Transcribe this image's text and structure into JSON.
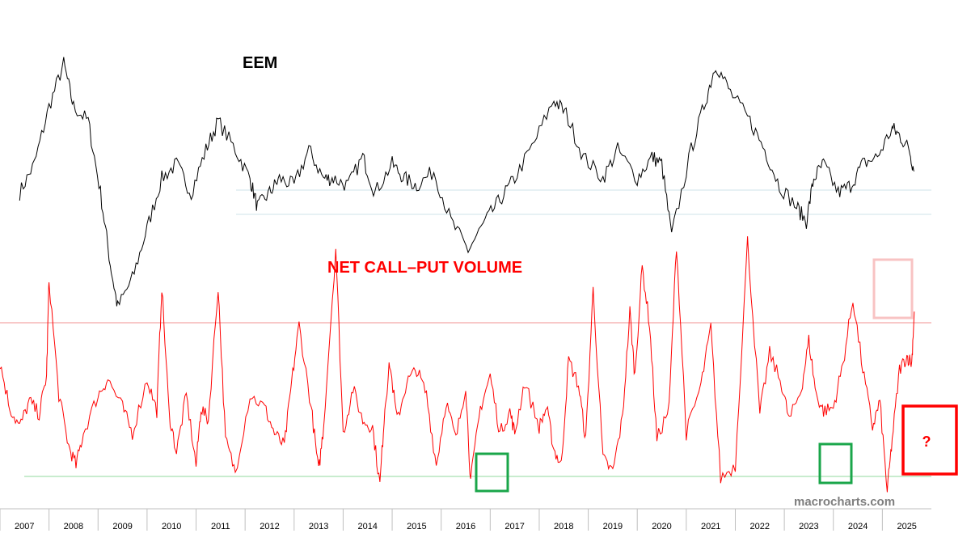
{
  "chart_data": [
    {
      "type": "line",
      "title": "EEM",
      "series": [
        {
          "x": [
            2006.9,
            2007.2,
            2007.5,
            2007.8,
            2008.0,
            2008.3,
            2008.55,
            2008.75,
            2008.9,
            2009.2,
            2009.5,
            2009.8,
            2010.1,
            2010.4,
            2010.7,
            2010.95,
            2011.3,
            2011.6,
            2011.75,
            2012.0,
            2012.2,
            2012.5,
            2012.8,
            2013.1,
            2013.3,
            2013.6,
            2013.9,
            2014.15,
            2014.5,
            2014.75,
            2015.0,
            2015.35,
            2015.7,
            2016.05,
            2016.4,
            2016.7,
            2017.0,
            2017.4,
            2017.8,
            2018.05,
            2018.4,
            2018.8,
            2019.1,
            2019.5,
            2019.8,
            2020.0,
            2020.2,
            2020.6,
            2020.9,
            2021.1,
            2021.4,
            2021.8,
            2022.1,
            2022.4,
            2022.75,
            2022.95,
            2023.1,
            2023.3,
            2023.6,
            2023.85,
            2024.1,
            2024.4,
            2024.7,
            2024.85,
            2025.05,
            2025.15
          ],
          "y": [
            36,
            40,
            48,
            54,
            48,
            46,
            36,
            26,
            20,
            24,
            31,
            38,
            40,
            36,
            42,
            46,
            42,
            38,
            34,
            36,
            38,
            37,
            42,
            38,
            38,
            37,
            41,
            36,
            40,
            38,
            37,
            39,
            32,
            28,
            32,
            35,
            38,
            43,
            49,
            47,
            41,
            38,
            42,
            38,
            41,
            40,
            30,
            42,
            49,
            54,
            50,
            46,
            42,
            37,
            34,
            32,
            38,
            40,
            36,
            37,
            40,
            41,
            45,
            44,
            42,
            39
          ]
        }
      ]
    },
    {
      "type": "line",
      "title": "NET CALL–PUT VOLUME",
      "xlim": [
        2006.5,
        2025.5
      ],
      "ticks": [
        "2007",
        "2008",
        "2009",
        "2010",
        "2011",
        "2012",
        "2013",
        "2014",
        "2015",
        "2016",
        "2017",
        "2018",
        "2019",
        "2020",
        "2021",
        "2022",
        "2023",
        "2024",
        "2025"
      ],
      "series": [
        {
          "x": [
            2006.5,
            2006.7,
            2006.9,
            2007.1,
            2007.3,
            2007.45,
            2007.5,
            2007.7,
            2007.9,
            2008.05,
            2008.2,
            2008.5,
            2008.7,
            2009.0,
            2009.2,
            2009.5,
            2009.7,
            2009.8,
            2009.95,
            2010.1,
            2010.3,
            2010.5,
            2010.6,
            2010.75,
            2010.95,
            2011.1,
            2011.3,
            2011.6,
            2011.9,
            2012.1,
            2012.3,
            2012.45,
            2012.6,
            2012.85,
            2013.0,
            2013.1,
            2013.35,
            2013.5,
            2013.7,
            2013.9,
            2014.1,
            2014.25,
            2014.35,
            2014.45,
            2014.6,
            2014.8,
            2015.0,
            2015.2,
            2015.4,
            2015.6,
            2015.8,
            2016.0,
            2016.1,
            2016.3,
            2016.5,
            2016.7,
            2016.9,
            2017.0,
            2017.2,
            2017.5,
            2017.65,
            2017.8,
            2017.95,
            2018.1,
            2018.3,
            2018.45,
            2018.6,
            2018.8,
            2019.0,
            2019.2,
            2019.35,
            2019.45,
            2019.6,
            2019.75,
            2019.9,
            2020.15,
            2020.3,
            2020.5,
            2020.8,
            2021.0,
            2021.2,
            2021.5,
            2021.75,
            2022.0,
            2022.2,
            2022.45,
            2022.6,
            2022.85,
            2023.0,
            2023.15,
            2023.3,
            2023.5,
            2023.7,
            2023.9,
            2024.1,
            2024.3,
            2024.45,
            2024.6,
            2024.7,
            2024.85,
            2025.0,
            2025.1,
            2025.15
          ],
          "y": [
            62,
            48,
            42,
            50,
            46,
            58,
            88,
            52,
            36,
            30,
            40,
            52,
            57,
            48,
            40,
            57,
            47,
            86,
            46,
            34,
            52,
            30,
            48,
            44,
            86,
            38,
            28,
            52,
            48,
            40,
            36,
            56,
            74,
            48,
            28,
            42,
            98,
            40,
            54,
            44,
            42,
            24,
            48,
            62,
            44,
            56,
            60,
            52,
            30,
            50,
            38,
            55,
            25,
            48,
            58,
            40,
            47,
            40,
            56,
            42,
            48,
            35,
            30,
            63,
            55,
            38,
            85,
            32,
            28,
            45,
            78,
            58,
            92,
            74,
            38,
            48,
            99,
            40,
            55,
            73,
            26,
            30,
            100,
            46,
            65,
            55,
            44,
            54,
            69,
            52,
            47,
            48,
            62,
            82,
            60,
            42,
            50,
            22,
            38,
            60,
            64,
            62,
            78
          ],
          "y_note": "index scale (higher = more call-heavy)"
        }
      ]
    }
  ],
  "labels": {
    "watermark": "macrocharts.com",
    "question": "?"
  },
  "colors": {
    "eem": "#000000",
    "netcallput": "#ff0000",
    "upper_threshold": "#f4a6a6",
    "lower_threshold": "#a6e0b0",
    "eem_support": "#cfe3ea",
    "green_box": "#1aa64a",
    "pink_box": "#f8c3c3",
    "red_box": "#ff0000",
    "watermark": "#7f7f7f"
  }
}
